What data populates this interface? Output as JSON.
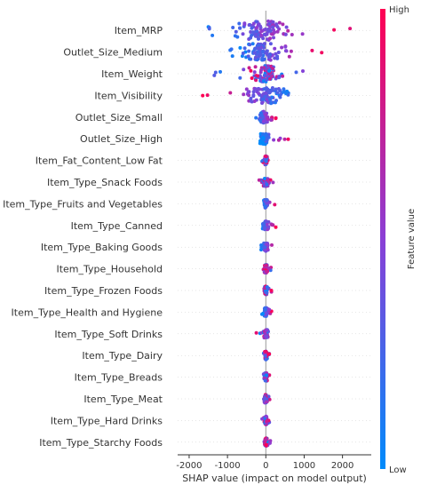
{
  "chart_data": {
    "type": "scatter",
    "subtype": "shap-beeswarm",
    "xlabel": "SHAP value (impact on model output)",
    "xlim": [
      -2300,
      2750
    ],
    "xticks": [
      -2000,
      -1000,
      0,
      1000,
      2000
    ],
    "xtick_labels": [
      "-2000",
      "-1000",
      "0",
      "1000",
      "2000"
    ],
    "features": [
      {
        "name": "Item_MRP",
        "min": -2100,
        "max": 2500,
        "center": -100,
        "width": 1.0,
        "high_side": "right"
      },
      {
        "name": "Outlet_Size_Medium",
        "min": -1000,
        "max": 1900,
        "center": -100,
        "width": 0.9,
        "high_side": "right"
      },
      {
        "name": "Item_Weight",
        "min": -1350,
        "max": 1100,
        "center": 0,
        "width": 0.8,
        "high_side": "mixed"
      },
      {
        "name": "Item_Visibility",
        "min": -1900,
        "max": 950,
        "center": 0,
        "width": 0.8,
        "high_side": "left"
      },
      {
        "name": "Outlet_Size_Small",
        "min": -300,
        "max": 350,
        "center": -50,
        "width": 0.5,
        "high_side": "right"
      },
      {
        "name": "Outlet_Size_High",
        "min": -150,
        "max": 700,
        "center": -50,
        "width": 0.45,
        "high_side": "right"
      },
      {
        "name": "Item_Fat_Content_Low Fat",
        "min": -100,
        "max": 100,
        "center": 0,
        "width": 0.35,
        "high_side": "mixed"
      },
      {
        "name": "Item_Type_Snack Foods",
        "min": -250,
        "max": 200,
        "center": 0,
        "width": 0.3,
        "high_side": "mixed"
      },
      {
        "name": "Item_Type_Fruits and Vegetables",
        "min": -150,
        "max": 300,
        "center": 0,
        "width": 0.3,
        "high_side": "right"
      },
      {
        "name": "Item_Type_Canned",
        "min": -150,
        "max": 300,
        "center": 0,
        "width": 0.3,
        "high_side": "right"
      },
      {
        "name": "Item_Type_Baking Goods",
        "min": -150,
        "max": 250,
        "center": 0,
        "width": 0.3,
        "high_side": "right"
      },
      {
        "name": "Item_Type_Household",
        "min": -100,
        "max": 150,
        "center": 0,
        "width": 0.3,
        "high_side": "mixed"
      },
      {
        "name": "Item_Type_Frozen Foods",
        "min": -100,
        "max": 150,
        "center": 0,
        "width": 0.3,
        "high_side": "mixed"
      },
      {
        "name": "Item_Type_Health and Hygiene",
        "min": -100,
        "max": 200,
        "center": 0,
        "width": 0.3,
        "high_side": "right"
      },
      {
        "name": "Item_Type_Soft Drinks",
        "min": -250,
        "max": 200,
        "center": 0,
        "width": 0.3,
        "high_side": "mixed"
      },
      {
        "name": "Item_Type_Dairy",
        "min": -100,
        "max": 100,
        "center": 0,
        "width": 0.3,
        "high_side": "mixed"
      },
      {
        "name": "Item_Type_Breads",
        "min": -150,
        "max": 150,
        "center": 0,
        "width": 0.3,
        "high_side": "mixed"
      },
      {
        "name": "Item_Type_Meat",
        "min": -100,
        "max": 150,
        "center": 0,
        "width": 0.3,
        "high_side": "mixed"
      },
      {
        "name": "Item_Type_Hard Drinks",
        "min": -100,
        "max": 100,
        "center": 0,
        "width": 0.3,
        "high_side": "mixed"
      },
      {
        "name": "Item_Type_Starchy Foods",
        "min": -100,
        "max": 150,
        "center": 0,
        "width": 0.3,
        "high_side": "mixed"
      }
    ],
    "colorbar": {
      "title": "Feature value",
      "high_label": "High",
      "low_label": "Low",
      "low_color": "#008bfb",
      "high_color": "#ff0052"
    },
    "zero_line_color": "#999999",
    "grid": false
  }
}
